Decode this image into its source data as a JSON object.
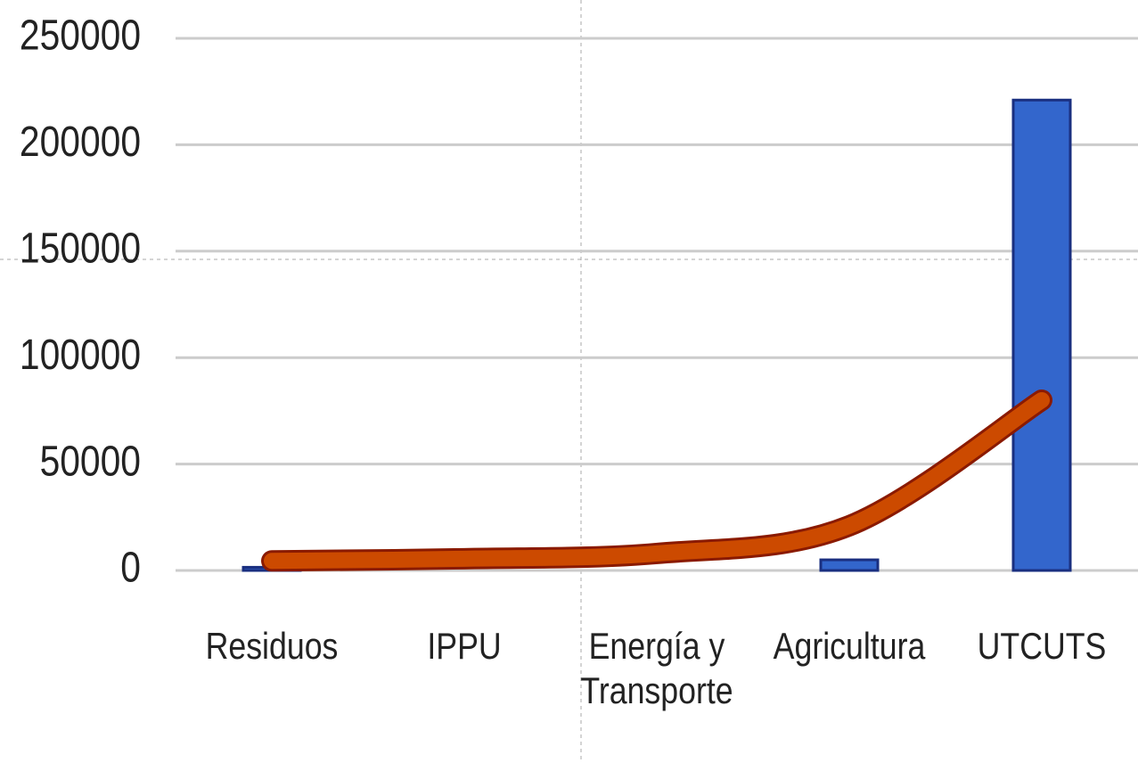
{
  "chart_data": {
    "type": "bar",
    "categories": [
      "Residuos",
      "IPPU",
      "Energía y Transporte",
      "Agricultura",
      "UTCUTS"
    ],
    "series": [
      {
        "type": "bar",
        "color": "#3366cc",
        "values": [
          1500,
          0,
          0,
          5000,
          221000
        ]
      },
      {
        "type": "line",
        "color": "#cc4a00",
        "values": [
          4500,
          5500,
          8000,
          21000,
          80000
        ]
      }
    ],
    "ylim": [
      0,
      250000
    ],
    "yticks": [
      0,
      50000,
      100000,
      150000,
      200000,
      250000
    ],
    "grid": true
  }
}
